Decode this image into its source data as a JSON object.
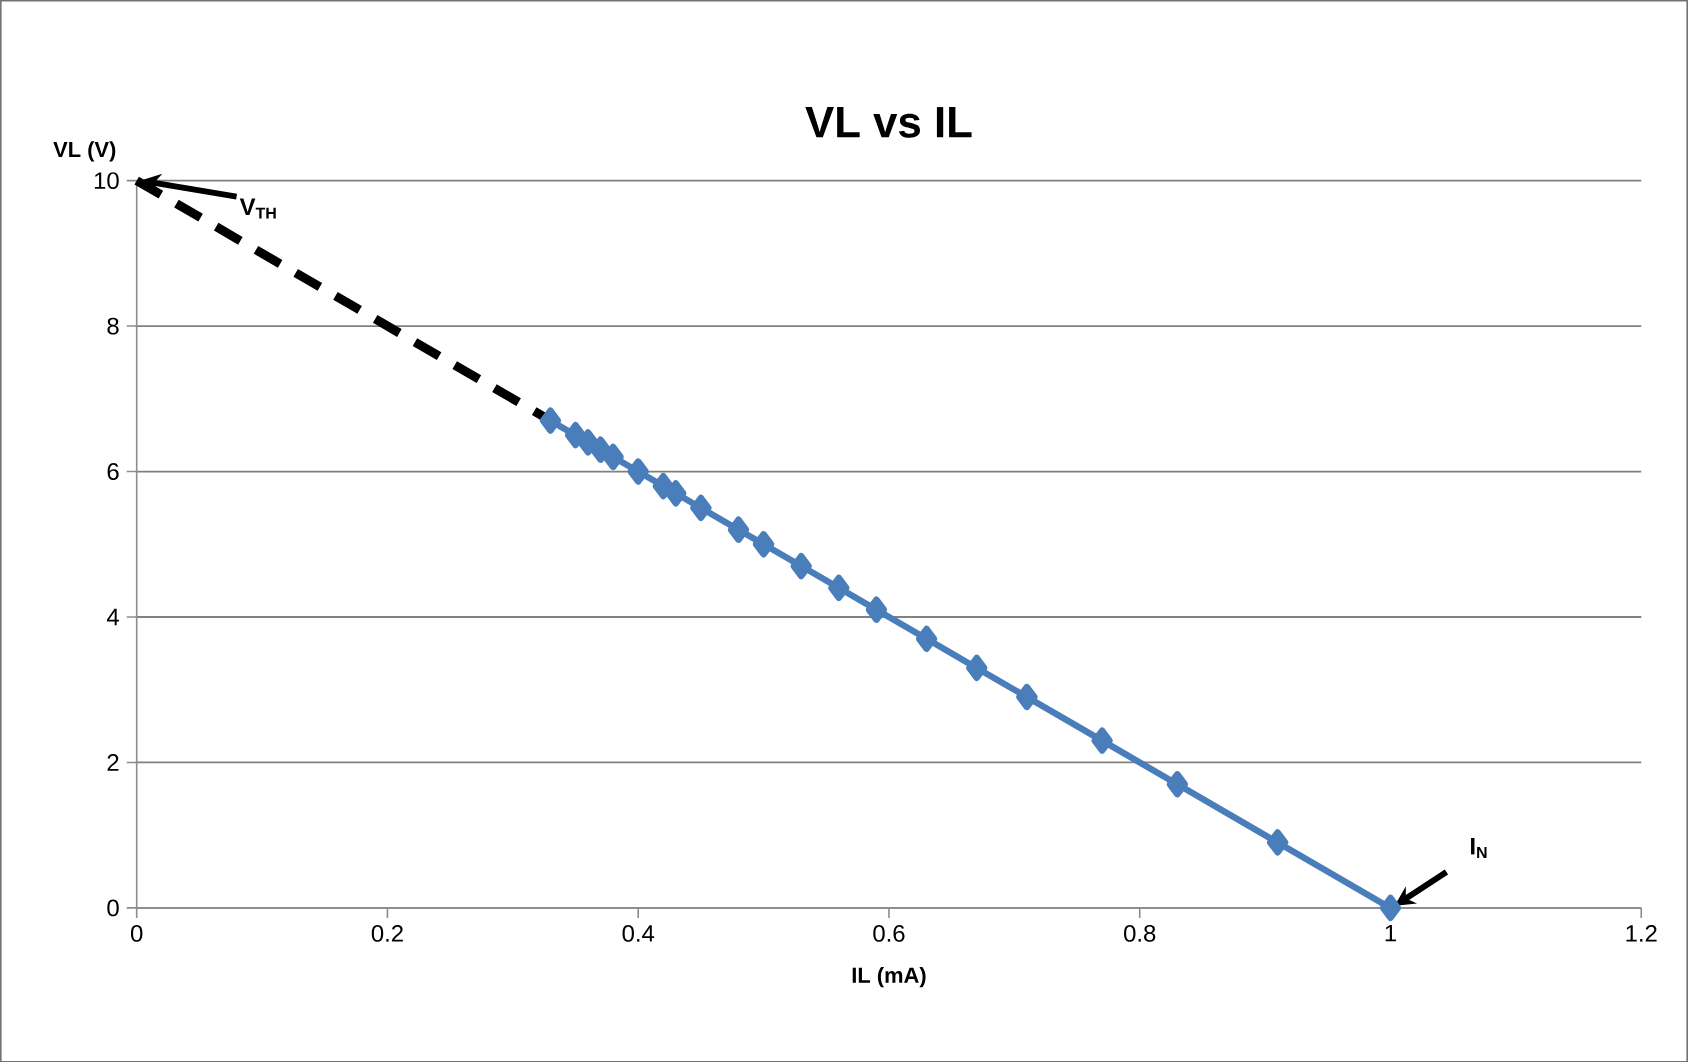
{
  "chart_data": {
    "type": "line",
    "title": "VL vs IL",
    "xlabel": "IL (mA)",
    "ylabel": "VL (V)",
    "xlim": [
      0,
      1.2
    ],
    "xticks": [
      0,
      0.2,
      0.4,
      0.6,
      0.8,
      1,
      1.2
    ],
    "ylim": [
      0,
      10
    ],
    "yticks": [
      0,
      2,
      4,
      6,
      8,
      10
    ],
    "grid": "y",
    "legend": false,
    "series": [
      {
        "color": "#4a7ebb",
        "marker": "diamond",
        "line_style": "solid",
        "x": [
          1,
          0.91,
          0.83,
          0.77,
          0.71,
          0.67,
          0.63,
          0.59,
          0.56,
          0.53,
          0.5,
          0.48,
          0.45,
          0.43,
          0.42,
          0.4,
          0.38,
          0.37,
          0.36,
          0.35,
          0.33
        ],
        "values": [
          0,
          0.9,
          1.7,
          2.3,
          2.9,
          3.3,
          3.7,
          4.1,
          4.4,
          4.7,
          5,
          5.2,
          5.5,
          5.7,
          5.8,
          6,
          6.2,
          6.3,
          6.4,
          6.5,
          6.7
        ]
      },
      {
        "type": "line",
        "color": "#000000",
        "marker": "none",
        "line_style": "dashed",
        "x": [
          0,
          0.33
        ],
        "values": [
          10,
          6.7
        ]
      }
    ],
    "annotations": [
      {
        "text": "V$_{TH}$",
        "x": 0,
        "y": 10
      },
      {
        "text": "I$_{N}$",
        "x": 1,
        "y": 0
      }
    ]
  }
}
